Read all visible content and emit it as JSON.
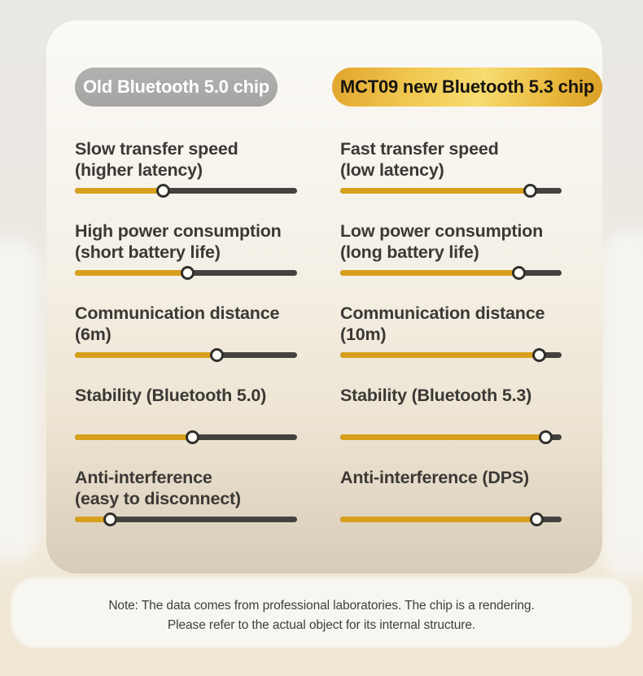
{
  "columns": [
    {
      "id": "old-chip",
      "title": "Old Bluetooth 5.0 chip",
      "items": [
        {
          "label": "Slow transfer speed\n(higher latency)",
          "value_pct": 40
        },
        {
          "label": "High power consumption\n(short battery life)",
          "value_pct": 51
        },
        {
          "label": "Communication distance\n(6m)",
          "value_pct": 64
        },
        {
          "label": "Stability (Bluetooth 5.0)",
          "value_pct": 53
        },
        {
          "label": "Anti-interference\n(easy to disconnect)",
          "value_pct": 16
        }
      ]
    },
    {
      "id": "new-chip",
      "title": "MCT09 new Bluetooth 5.3 chip",
      "items": [
        {
          "label": "Fast transfer speed\n(low latency)",
          "value_pct": 86
        },
        {
          "label": "Low power consumption\n(long battery life)",
          "value_pct": 81
        },
        {
          "label": "Communication distance\n(10m)",
          "value_pct": 90
        },
        {
          "label": "Stability (Bluetooth 5.3)",
          "value_pct": 93
        },
        {
          "label": "Anti-interference (DPS)",
          "value_pct": 89
        }
      ]
    }
  ],
  "note": {
    "line1": "Note: The data comes from professional laboratories. The chip is a rendering.",
    "line2": "Please refer to the actual object for its internal structure."
  },
  "colors": {
    "accent_gold": "#D7A01C",
    "track_dark": "#44423E",
    "old_pill_gray": "#A5A4A2",
    "new_pill_gold": "#F7DC71"
  },
  "chart_data": {
    "type": "bar",
    "title": "Old Bluetooth 5.0 chip vs MCT09 new Bluetooth 5.3 chip",
    "categories": [
      "Transfer speed",
      "Power consumption",
      "Communication distance",
      "Stability",
      "Anti-interference"
    ],
    "series": [
      {
        "name": "Old Bluetooth 5.0 chip",
        "labels": [
          "Slow transfer speed (higher latency)",
          "High power consumption (short battery life)",
          "Communication distance (6m)",
          "Stability (Bluetooth 5.0)",
          "Anti-interference (easy to disconnect)"
        ],
        "values": [
          40,
          51,
          64,
          53,
          16
        ]
      },
      {
        "name": "MCT09 new Bluetooth 5.3 chip",
        "labels": [
          "Fast transfer speed (low latency)",
          "Low power consumption (long battery life)",
          "Communication distance (10m)",
          "Stability (Bluetooth 5.3)",
          "Anti-interference (DPS)"
        ],
        "values": [
          86,
          81,
          90,
          93,
          89
        ]
      }
    ],
    "value_range": [
      0,
      100
    ],
    "value_unit": "percent of slider track filled",
    "legend_position": "top",
    "grid": false
  }
}
